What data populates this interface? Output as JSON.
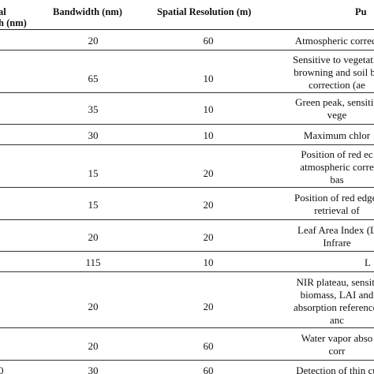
{
  "table": {
    "headers": {
      "wavelength_line1": "al",
      "wavelength_line2": "h (nm)",
      "bandwidth": "Bandwidth (nm)",
      "spatial": "Spatial Resolution (m)",
      "purpose": "Pu"
    },
    "rows": [
      {
        "wavelength": "",
        "bandwidth": "20",
        "spatial": "60",
        "purpose": [
          "Atmospheric correct"
        ]
      },
      {
        "wavelength": "",
        "bandwidth": "65",
        "spatial": "10",
        "purpose": [
          "Sensitive to vegetatio",
          "browning and soil ba",
          "correction (ae"
        ]
      },
      {
        "wavelength": "",
        "bandwidth": "35",
        "spatial": "10",
        "purpose": [
          "Green peak, sensitiv",
          "vege"
        ]
      },
      {
        "wavelength": "",
        "bandwidth": "30",
        "spatial": "10",
        "purpose": [
          "Maximum chlor"
        ]
      },
      {
        "wavelength": "",
        "bandwidth": "15",
        "spatial": "20",
        "purpose": [
          "Position of red ec",
          "atmospheric corre",
          "bas"
        ]
      },
      {
        "wavelength": "",
        "bandwidth": "15",
        "spatial": "20",
        "purpose": [
          "Position of red edge;",
          "retrieval of"
        ]
      },
      {
        "wavelength": "",
        "bandwidth": "20",
        "spatial": "20",
        "purpose": [
          "Leaf Area Index (L",
          "Infrare"
        ]
      },
      {
        "wavelength": "",
        "bandwidth": "115",
        "spatial": "10",
        "purpose": [
          "L"
        ]
      },
      {
        "wavelength": "",
        "bandwidth": "20",
        "spatial": "20",
        "purpose": [
          "NIR plateau, sensiti",
          "biomass, LAI and",
          "absorption reference;",
          "anc"
        ]
      },
      {
        "wavelength": "",
        "bandwidth": "20",
        "spatial": "60",
        "purpose": [
          "Water vapor abso",
          "corr"
        ]
      },
      {
        "wavelength": "0",
        "bandwidth": "30",
        "spatial": "60",
        "purpose": [
          "Detection of thin cu",
          "corr"
        ]
      }
    ]
  }
}
